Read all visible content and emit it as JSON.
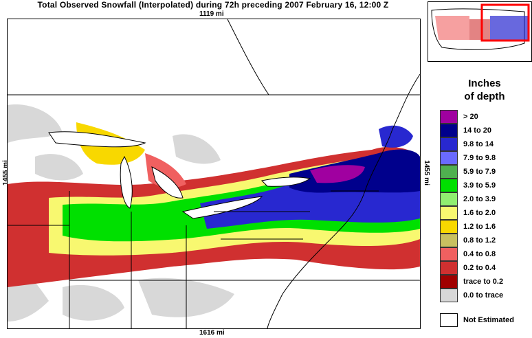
{
  "title": "Total Observed Snowfall (Interpolated) during 72h preceding 2007 February 16, 12:00 Z",
  "distances": {
    "top": "1119 mi",
    "bottom": "1616 mi",
    "left": "1455 mi",
    "right": "1455 mi"
  },
  "legend": {
    "title_line1": "Inches",
    "title_line2": "of depth",
    "items": [
      {
        "label": ">   20",
        "color": "#a000a0"
      },
      {
        "label": "14 to   20",
        "color": "#00008c"
      },
      {
        "label": "9.8 to   14",
        "color": "#2828d0"
      },
      {
        "label": "7.9 to   9.8",
        "color": "#6a6aff"
      },
      {
        "label": "5.9 to   7.9",
        "color": "#50b050"
      },
      {
        "label": "3.9 to   5.9",
        "color": "#00e000"
      },
      {
        "label": "2.0 to   3.9",
        "color": "#90ee70"
      },
      {
        "label": "1.6 to   2.0",
        "color": "#f8f870"
      },
      {
        "label": "1.2 to   1.6",
        "color": "#f8d800"
      },
      {
        "label": "0.8 to   1.2",
        "color": "#c8c060"
      },
      {
        "label": "0.4 to   0.8",
        "color": "#f06060"
      },
      {
        "label": "0.2 to   0.4",
        "color": "#d03030"
      },
      {
        "label": "trace to   0.2",
        "color": "#a00000"
      },
      {
        "label": "0.0 to trace",
        "color": "#d8d8d8"
      }
    ],
    "not_estimated": "Not Estimated"
  }
}
